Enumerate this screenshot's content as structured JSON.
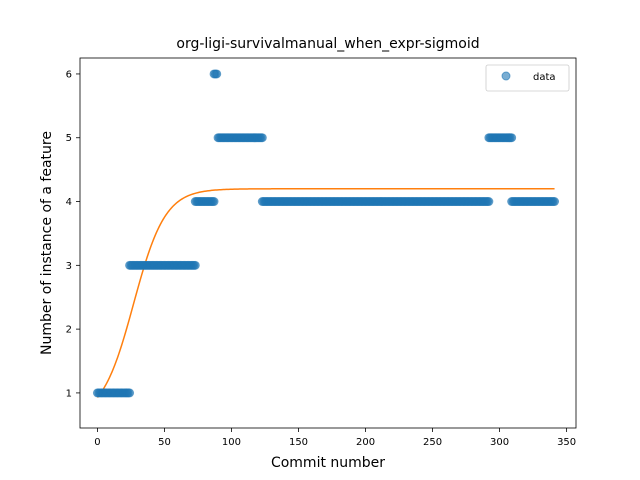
{
  "chart_data": {
    "type": "scatter",
    "title": "org-ligi-survivalmanual_when_expr-sigmoid",
    "xlabel": "Commit number",
    "ylabel": "Number of instance of a feature",
    "xlim": [
      -13,
      357
    ],
    "ylim": [
      0.45,
      6.25
    ],
    "xticks": [
      0,
      50,
      100,
      150,
      200,
      250,
      300,
      350
    ],
    "yticks": [
      1,
      2,
      3,
      4,
      5,
      6
    ],
    "grid": false,
    "legend": {
      "placement": "top-right",
      "entries": [
        "data"
      ]
    },
    "colors": {
      "data": "#1f77b4",
      "fit": "#ff7f0e"
    },
    "series": [
      {
        "name": "data",
        "kind": "scatter",
        "segments": [
          {
            "x_start": 0,
            "x_end": 24,
            "y": 1
          },
          {
            "x_start": 24,
            "x_end": 73,
            "y": 3
          },
          {
            "x_start": 73,
            "x_end": 87,
            "y": 4
          },
          {
            "x_start": 87,
            "x_end": 89,
            "y": 6
          },
          {
            "x_start": 90,
            "x_end": 123,
            "y": 5
          },
          {
            "x_start": 123,
            "x_end": 292,
            "y": 4
          },
          {
            "x_start": 292,
            "x_end": 309,
            "y": 5
          },
          {
            "x_start": 309,
            "x_end": 341,
            "y": 4
          }
        ]
      },
      {
        "kind": "line",
        "model": "sigmoid",
        "x_range": [
          0,
          341
        ],
        "params": {
          "L": 3.6,
          "k": 0.085,
          "x0": 27,
          "b": 0.6
        }
      }
    ]
  }
}
